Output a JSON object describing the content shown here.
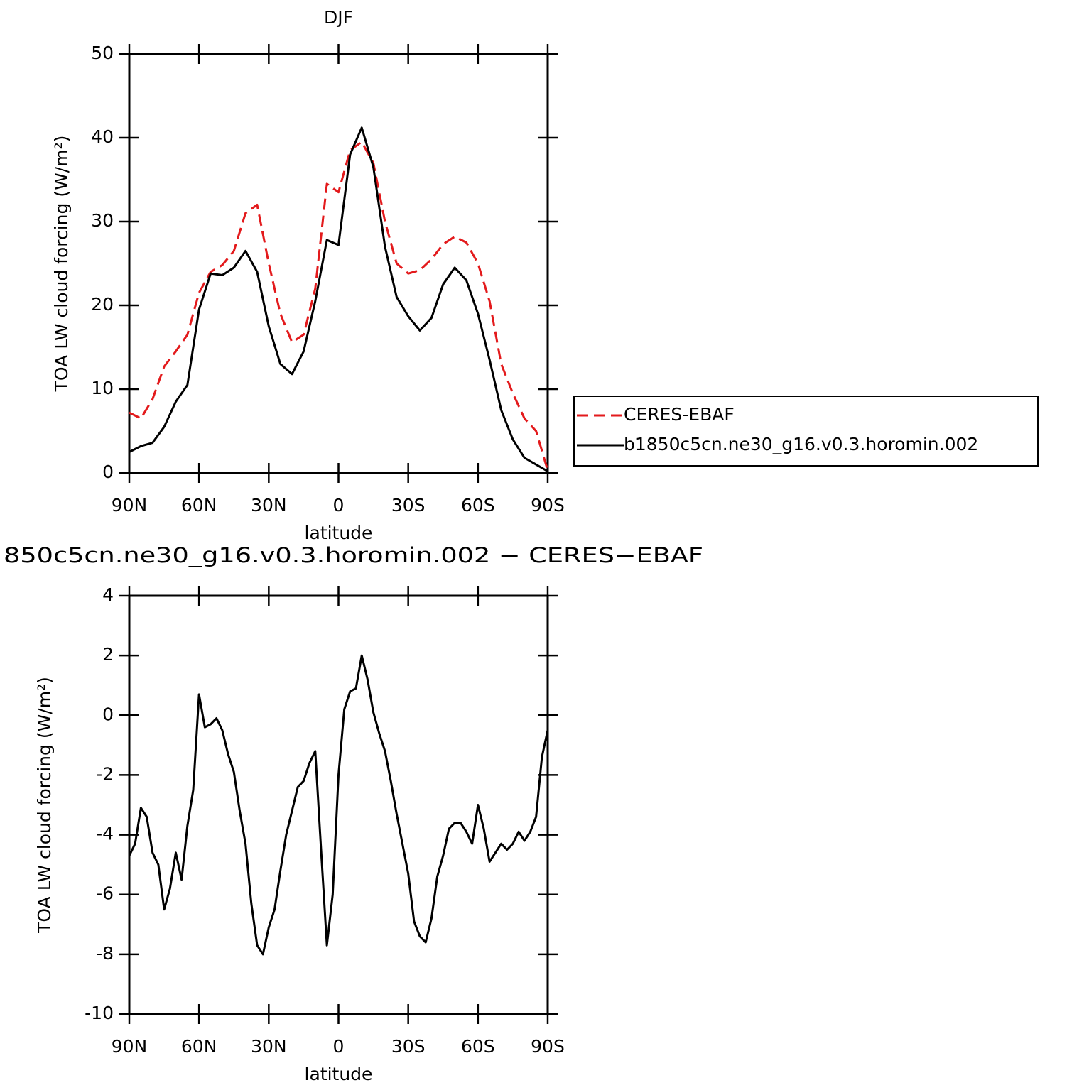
{
  "chart_data": [
    {
      "type": "line",
      "title": "DJF",
      "x_label": "latitude",
      "y_label": "TOA LW cloud forcing (W/m²)",
      "xlim": [
        90,
        -90
      ],
      "xticks": [
        {
          "value": 90,
          "label": "90N"
        },
        {
          "value": 60,
          "label": "60N"
        },
        {
          "value": 30,
          "label": "30N"
        },
        0,
        {
          "value": -30,
          "label": "30S"
        },
        {
          "value": -60,
          "label": "60S"
        },
        {
          "value": -90,
          "label": "90S"
        }
      ],
      "ylim": [
        0,
        50
      ],
      "yticks": [
        0,
        10,
        20,
        30,
        40,
        50
      ],
      "grid": false,
      "legend": "outside right",
      "x": [
        90,
        85,
        80,
        75,
        70,
        65,
        60,
        55,
        50,
        45,
        40,
        35,
        30,
        25,
        20,
        15,
        10,
        5,
        0,
        -5,
        -10,
        -15,
        -20,
        -25,
        -30,
        -35,
        -40,
        -45,
        -50,
        -55,
        -60,
        -65,
        -70,
        -75,
        -80,
        -85,
        -90
      ],
      "series": [
        {
          "name": "CERES-EBAF",
          "color": "#e31a1c",
          "line_style": "dashed",
          "values": [
            7.2,
            6.5,
            8.8,
            12.7,
            14.5,
            16.5,
            21.5,
            24,
            24.8,
            26.5,
            31,
            32,
            25,
            19,
            15.6,
            16.5,
            22,
            34.5,
            33.5,
            38.5,
            39.5,
            37,
            30,
            25,
            23.8,
            24.2,
            25.5,
            27.3,
            28.2,
            27.5,
            25,
            20.5,
            13,
            9.5,
            6.5,
            5,
            0.3
          ]
        },
        {
          "name": "b1850c5cn.ne30_g16.v0.3.horomin.002",
          "color": "#000000",
          "line_style": "solid",
          "values": [
            2.5,
            3.2,
            3.6,
            5.5,
            8.5,
            10.5,
            19.5,
            23.8,
            23.6,
            24.5,
            26.5,
            24,
            17.5,
            13,
            11.8,
            14.5,
            20.5,
            27.8,
            27.2,
            38,
            41.2,
            36.5,
            27,
            21,
            18.7,
            17,
            18.5,
            22.5,
            24.5,
            23,
            19,
            13.5,
            7.5,
            4,
            1.8,
            1,
            0.2
          ]
        }
      ]
    },
    {
      "type": "line",
      "title": "850c5cn.ne30_g16.v0.3.horomin.002 − CERES−EBAF",
      "x_label": "latitude",
      "y_label": "TOA LW cloud forcing (W/m²)",
      "xlim": [
        90,
        -90
      ],
      "xticks": [
        {
          "value": 90,
          "label": "90N"
        },
        {
          "value": 60,
          "label": "60N"
        },
        {
          "value": 30,
          "label": "30N"
        },
        0,
        {
          "value": -30,
          "label": "30S"
        },
        {
          "value": -60,
          "label": "60S"
        },
        {
          "value": -90,
          "label": "90S"
        }
      ],
      "ylim": [
        -10,
        4
      ],
      "yticks": [
        -10,
        -8,
        -6,
        -4,
        -2,
        0,
        2,
        4
      ],
      "grid": false,
      "x": [
        90,
        87.5,
        85,
        82.5,
        80,
        77.5,
        75,
        72.5,
        70,
        67.5,
        65,
        62.5,
        60,
        57.5,
        55,
        52.5,
        50,
        47.5,
        45,
        42.5,
        40,
        37.5,
        35,
        32.5,
        30,
        27.5,
        25,
        22.5,
        20,
        17.5,
        15,
        12.5,
        10,
        7.5,
        5,
        2.5,
        0,
        -2.5,
        -5,
        -7.5,
        -10,
        -12.5,
        -15,
        -17.5,
        -20,
        -22.5,
        -25,
        -27.5,
        -30,
        -32.5,
        -35,
        -37.5,
        -40,
        -42.5,
        -45,
        -47.5,
        -50,
        -52.5,
        -55,
        -57.5,
        -60,
        -62.5,
        -65,
        -67.5,
        -70,
        -72.5,
        -75,
        -77.5,
        -80,
        -82.5,
        -85,
        -87.5,
        -90
      ],
      "color": "#000000",
      "values": [
        -4.7,
        -4.3,
        -3.1,
        -3.4,
        -4.6,
        -5,
        -6.5,
        -5.8,
        -4.6,
        -5.5,
        -3.7,
        -2.5,
        0.7,
        -0.4,
        -0.3,
        -0.1,
        -0.5,
        -1.3,
        -1.9,
        -3.2,
        -4.3,
        -6.3,
        -7.7,
        -8,
        -7.1,
        -6.5,
        -5.2,
        -4,
        -3.2,
        -2.4,
        -2.2,
        -1.6,
        -1.2,
        -4.5,
        -7.7,
        -6,
        -2,
        0.2,
        0.8,
        0.9,
        2.0,
        1.2,
        0.1,
        -0.6,
        -1.2,
        -2.2,
        -3.3,
        -4.3,
        -5.3,
        -6.9,
        -7.4,
        -7.6,
        -6.8,
        -5.4,
        -4.7,
        -3.8,
        -3.6,
        -3.6,
        -3.9,
        -4.3,
        -3,
        -3.8,
        -4.9,
        -4.6,
        -4.3,
        -4.5,
        -4.3,
        -3.9,
        -4.2,
        -3.9,
        -3.4,
        -1.4,
        -0.5
      ]
    }
  ]
}
